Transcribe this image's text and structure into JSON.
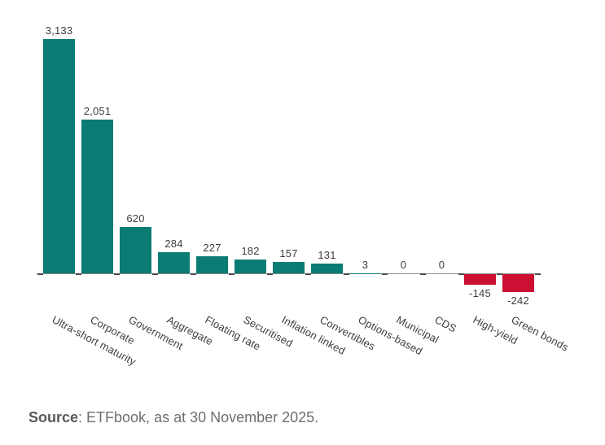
{
  "chart_data": {
    "type": "bar",
    "title": "",
    "xlabel": "",
    "ylabel": "",
    "categories": [
      "Ultra-short maturity",
      "Corporate",
      "Government",
      "Aggregate",
      "Floating rate",
      "Securitised",
      "Inflation linked",
      "Convertibles",
      "Options-based",
      "Municipal",
      "CDS",
      "High-yield",
      "Green bonds"
    ],
    "values": [
      3133,
      2051,
      620,
      284,
      227,
      182,
      157,
      131,
      3,
      0,
      0,
      -145,
      -242
    ],
    "value_labels": [
      "3,133",
      "2,051",
      "620",
      "284",
      "227",
      "182",
      "157",
      "131",
      "3",
      "0",
      "0",
      "-145",
      "-242"
    ],
    "ylim": [
      -242,
      3133
    ],
    "grid": false,
    "legend": false,
    "bar_color_positive": "#0b7c73",
    "bar_color_negative": "#cb1034",
    "axis_color": "#8a8a8a",
    "tick_color": "#4a4a4a",
    "label_color": "#3d3d3d"
  },
  "footer": {
    "source_label": "Source",
    "source_text": ": ETFbook, as at 30 November 2025.",
    "source_label_color": "#58595b",
    "source_text_color": "#6d6e71"
  }
}
